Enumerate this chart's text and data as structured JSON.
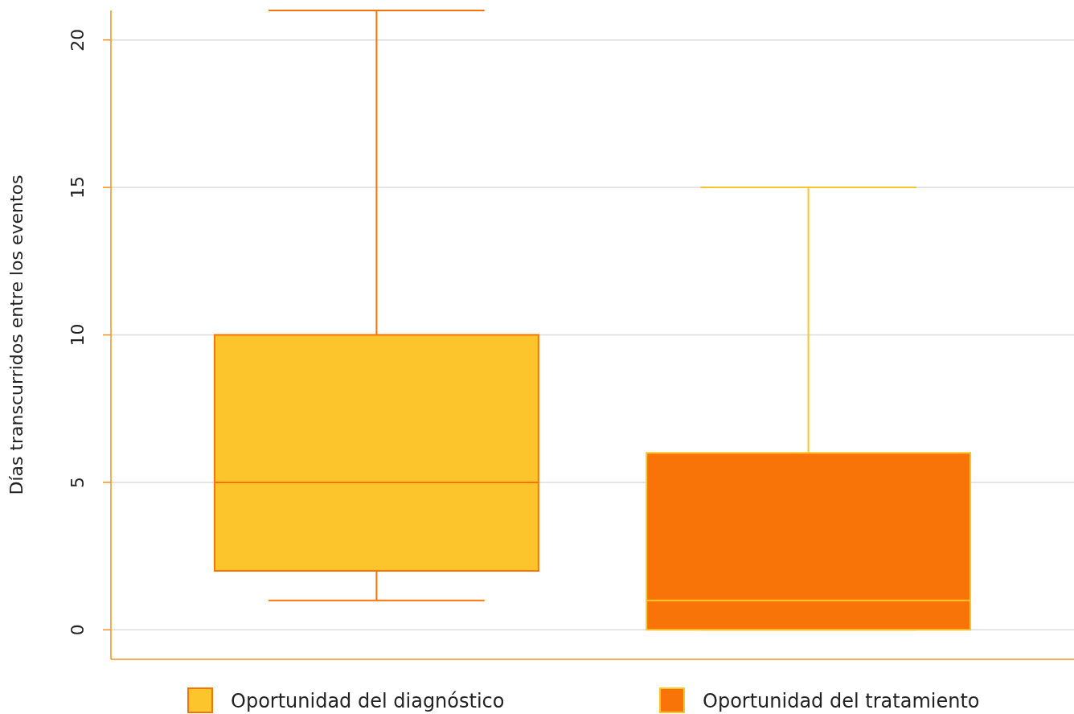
{
  "chart_data": {
    "type": "box",
    "ylabel": "Días transcurridos entre los eventos",
    "categories": [
      null,
      null
    ],
    "series": [
      {
        "name": "Oportunidad del diagnóstico",
        "color": "#fdc52c",
        "boxes": [
          {
            "low": 1,
            "q1": 2,
            "median": 5,
            "q3": 10,
            "high": 21
          },
          null
        ]
      },
      {
        "name": "Oportunidad del tratamiento",
        "color": "#f87408",
        "boxes": [
          null,
          {
            "low": 0,
            "q1": 0,
            "median": 1,
            "q3": 6,
            "high": 15
          }
        ]
      }
    ],
    "ylim": [
      -1,
      21
    ],
    "yticks": [
      0,
      5,
      10,
      15,
      20
    ],
    "grid": "y",
    "legend": "bottom"
  }
}
